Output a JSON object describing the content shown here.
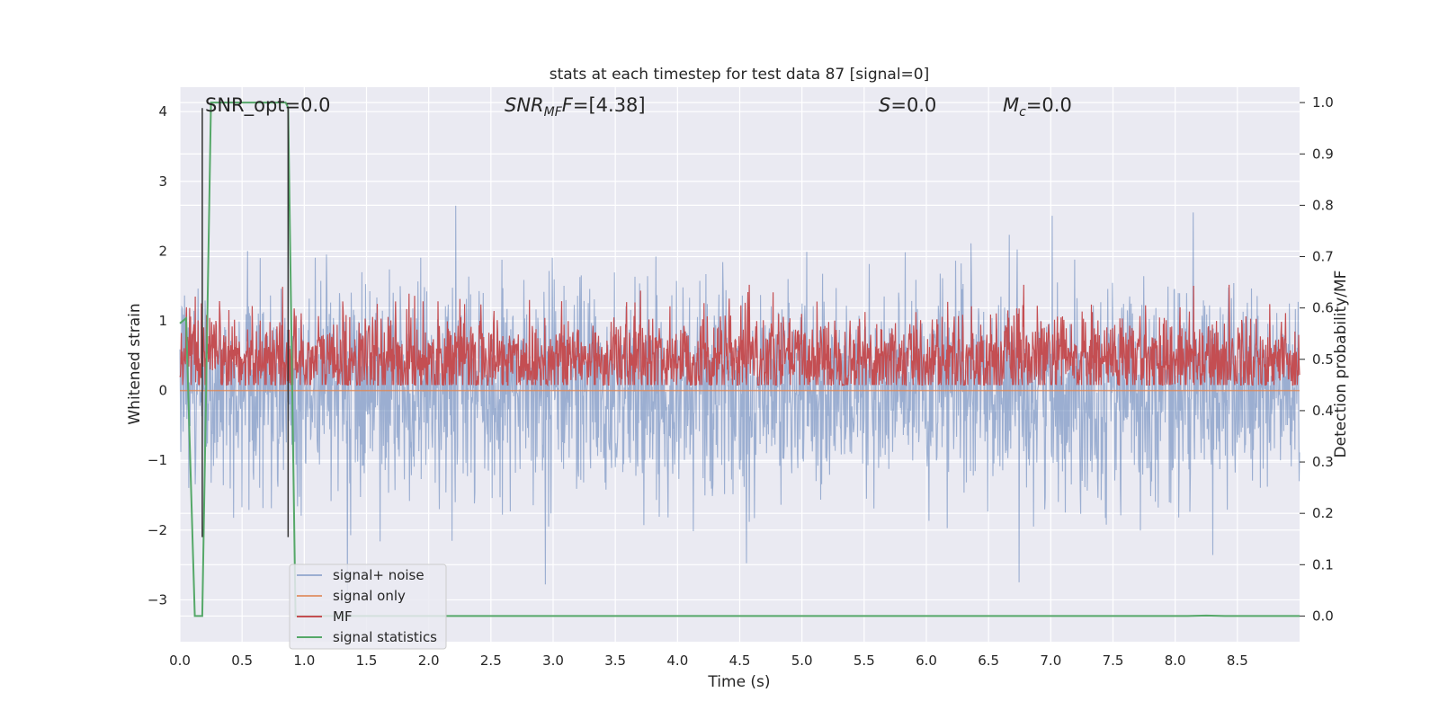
{
  "chart_data": {
    "type": "line",
    "title": "stats at each timestep for test data 87 [signal=0]",
    "xlabel": "Time (s)",
    "ylabel": "Whitened strain",
    "ylabel_right": "Detection probability/MF",
    "xlim": [
      0.0,
      9.0
    ],
    "ylim": [
      -3.6,
      4.35
    ],
    "ylim_right": [
      -0.05,
      1.03
    ],
    "x_ticks": [
      0.0,
      0.5,
      1.0,
      1.5,
      2.0,
      2.5,
      3.0,
      3.5,
      4.0,
      4.5,
      5.0,
      5.5,
      6.0,
      6.5,
      7.0,
      7.5,
      8.0,
      8.5
    ],
    "x_tick_labels": [
      "0.0",
      "0.5",
      "1.0",
      "1.5",
      "2.0",
      "2.5",
      "3.0",
      "3.5",
      "4.0",
      "4.5",
      "5.0",
      "5.5",
      "6.0",
      "6.5",
      "7.0",
      "7.5",
      "8.0",
      "8.5"
    ],
    "y_ticks": [
      -3,
      -2,
      -1,
      0,
      1,
      2,
      3,
      4
    ],
    "y_tick_labels": [
      "−3",
      "−2",
      "−1",
      "0",
      "1",
      "2",
      "3",
      "4"
    ],
    "y_ticks_right": [
      0.0,
      0.1,
      0.2,
      0.3,
      0.4,
      0.5,
      0.6,
      0.7,
      0.8,
      0.9,
      1.0
    ],
    "y_tick_labels_right": [
      "0.0",
      "0.1",
      "0.2",
      "0.3",
      "0.4",
      "0.5",
      "0.6",
      "0.7",
      "0.8",
      "0.9",
      "1.0"
    ],
    "grid": true,
    "legend_position": "lower-left",
    "annotations": [
      {
        "label": "SNR_opt",
        "value": "=0.0"
      },
      {
        "label": "SNR",
        "sub": "MF",
        "suffix": "F",
        "value": "=[4.38]"
      },
      {
        "label": "S",
        "value": "=0.0"
      },
      {
        "label": "M",
        "sub": "c",
        "value": "=0.0"
      }
    ],
    "vertical_markers": [
      0.18,
      0.87
    ],
    "series": [
      {
        "name": "signal+ noise",
        "color": "#4c72b0",
        "axis": "left",
        "kind": "noise",
        "mean": 0.0,
        "std": 0.75,
        "min": -3.3,
        "max": 4.05
      },
      {
        "name": "signal only",
        "color": "#dd8452",
        "axis": "left",
        "kind": "flat",
        "value": 0.0
      },
      {
        "name": "MF",
        "color": "#c44e52",
        "axis": "right",
        "kind": "noise",
        "mean": 0.5,
        "std": 0.045,
        "min": 0.45,
        "max": 0.645
      },
      {
        "name": "signal statistics",
        "color": "#55a868",
        "axis": "right",
        "kind": "step",
        "x": [
          0.0,
          0.05,
          0.12,
          0.18,
          0.25,
          0.3,
          0.85,
          0.87,
          0.93,
          1.0,
          8.1,
          8.25,
          8.4,
          9.0
        ],
        "y": [
          0.57,
          0.58,
          0.0,
          0.0,
          1.0,
          1.0,
          1.0,
          0.99,
          0.0,
          0.0,
          0.0,
          0.001,
          0.0,
          0.0
        ]
      }
    ]
  }
}
